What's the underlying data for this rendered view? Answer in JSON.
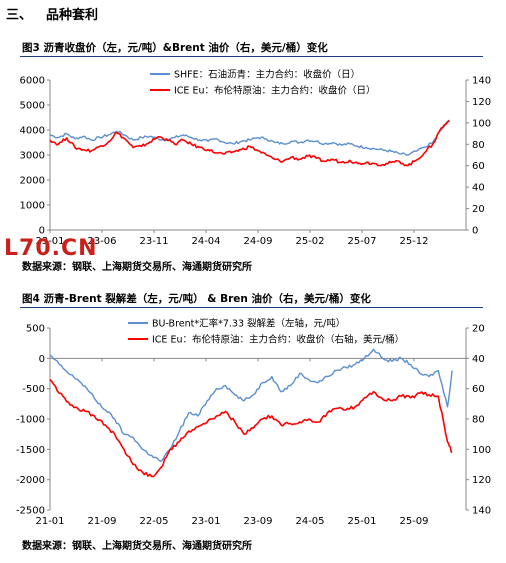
{
  "section": {
    "number": "三、",
    "title": "品种套利"
  },
  "watermark": "L70.CN",
  "figure1": {
    "title": "图3  沥青收盘价（左，元/吨）&Brent 油价（右，美元/桶）变化",
    "source": "数据来源：钢联、上海期货交易所、海通期货研究所"
  },
  "figure2": {
    "title": "图4  沥青-Brent 裂解差（左，元/吨）  & Bren 油价（右，美元/桶）变化",
    "source": "数据来源：钢联、上海期货交易所、海通期货研究所"
  },
  "colors": {
    "series_blue": "#5b8fcf",
    "series_red": "#ff0000",
    "rule": "#1f3d7a"
  },
  "chart_data": [
    {
      "type": "line",
      "x_tick_labels": [
        "23-01",
        "23-06",
        "23-11",
        "24-04",
        "24-09",
        "25-02",
        "25-07",
        "25-12"
      ],
      "left_ylim": [
        0,
        6000
      ],
      "left_ticks": [
        0,
        1000,
        2000,
        3000,
        4000,
        5000,
        6000
      ],
      "right_ylim": [
        0,
        140
      ],
      "right_ticks": [
        0,
        20,
        40,
        60,
        80,
        100,
        120,
        140
      ],
      "grid": false,
      "legend_position": "top-right",
      "series": [
        {
          "name": "SHFE：石油沥青：主力合约：收盘价（日）",
          "axis": "left",
          "color": "#5b8fcf",
          "points": [
            [
              0,
              3800
            ],
            [
              2,
              3700
            ],
            [
              4,
              3850
            ],
            [
              6,
              3650
            ],
            [
              8,
              3750
            ],
            [
              10,
              3600
            ],
            [
              12,
              3700
            ],
            [
              14,
              3800
            ],
            [
              16,
              3950
            ],
            [
              18,
              3800
            ],
            [
              20,
              3600
            ],
            [
              22,
              3700
            ],
            [
              24,
              3750
            ],
            [
              26,
              3650
            ],
            [
              28,
              3600
            ],
            [
              30,
              3700
            ],
            [
              32,
              3800
            ],
            [
              34,
              3700
            ],
            [
              36,
              3600
            ],
            [
              38,
              3550
            ],
            [
              40,
              3650
            ],
            [
              42,
              3500
            ],
            [
              44,
              3450
            ],
            [
              46,
              3550
            ],
            [
              48,
              3600
            ],
            [
              50,
              3700
            ],
            [
              52,
              3650
            ],
            [
              54,
              3500
            ],
            [
              56,
              3450
            ],
            [
              58,
              3550
            ],
            [
              60,
              3500
            ],
            [
              62,
              3600
            ],
            [
              64,
              3550
            ],
            [
              66,
              3450
            ],
            [
              68,
              3500
            ],
            [
              70,
              3400
            ],
            [
              72,
              3450
            ],
            [
              74,
              3350
            ],
            [
              76,
              3300
            ],
            [
              78,
              3250
            ],
            [
              80,
              3200
            ],
            [
              82,
              3150
            ],
            [
              84,
              3050
            ],
            [
              86,
              3000
            ],
            [
              88,
              3150
            ],
            [
              90,
              3300
            ],
            [
              92,
              3500
            ],
            [
              94,
              4000
            ],
            [
              96,
              4400
            ]
          ]
        },
        {
          "name": "ICE Eu：布伦特原油：主力合约：收盘价（日）",
          "axis": "right",
          "color": "#ff0000",
          "points": [
            [
              0,
              84
            ],
            [
              2,
              80
            ],
            [
              4,
              86
            ],
            [
              6,
              77
            ],
            [
              8,
              75
            ],
            [
              10,
              74
            ],
            [
              12,
              78
            ],
            [
              14,
              82
            ],
            [
              16,
              91
            ],
            [
              18,
              85
            ],
            [
              20,
              77
            ],
            [
              22,
              78
            ],
            [
              24,
              82
            ],
            [
              26,
              87
            ],
            [
              28,
              85
            ],
            [
              30,
              80
            ],
            [
              32,
              84
            ],
            [
              34,
              80
            ],
            [
              36,
              77
            ],
            [
              38,
              75
            ],
            [
              40,
              72
            ],
            [
              42,
              71
            ],
            [
              44,
              73
            ],
            [
              46,
              75
            ],
            [
              48,
              78
            ],
            [
              50,
              74
            ],
            [
              52,
              70
            ],
            [
              54,
              66
            ],
            [
              56,
              64
            ],
            [
              58,
              68
            ],
            [
              60,
              66
            ],
            [
              62,
              69
            ],
            [
              64,
              67
            ],
            [
              66,
              64
            ],
            [
              68,
              66
            ],
            [
              70,
              63
            ],
            [
              72,
              65
            ],
            [
              74,
              62
            ],
            [
              76,
              63
            ],
            [
              78,
              62
            ],
            [
              80,
              61
            ],
            [
              82,
              63
            ],
            [
              84,
              64
            ],
            [
              86,
              60
            ],
            [
              88,
              65
            ],
            [
              90,
              72
            ],
            [
              92,
              80
            ],
            [
              94,
              95
            ],
            [
              96,
              102
            ]
          ]
        }
      ]
    },
    {
      "type": "line",
      "x_tick_labels": [
        "21-01",
        "21-09",
        "22-05",
        "23-01",
        "23-09",
        "24-05",
        "25-01",
        "25-09"
      ],
      "left_ylim": [
        -2500,
        500
      ],
      "left_ticks": [
        -2500,
        -2000,
        -1500,
        -1000,
        -500,
        0,
        500
      ],
      "right_ylim": [
        140,
        20
      ],
      "right_ticks": [
        20,
        40,
        60,
        80,
        100,
        120,
        140
      ],
      "right_axis_inverted": true,
      "grid": false,
      "legend_position": "top-center",
      "series": [
        {
          "name": "BU-Brent*汇率*7.33 裂解差（左轴，元/吨）",
          "axis": "left",
          "color": "#5b8fcf",
          "points": [
            [
              0,
              50
            ],
            [
              2,
              -100
            ],
            [
              4,
              -250
            ],
            [
              6,
              -350
            ],
            [
              8,
              -500
            ],
            [
              10,
              -700
            ],
            [
              12,
              -850
            ],
            [
              14,
              -1000
            ],
            [
              16,
              -1250
            ],
            [
              18,
              -1300
            ],
            [
              20,
              -1500
            ],
            [
              22,
              -1600
            ],
            [
              24,
              -1700
            ],
            [
              26,
              -1500
            ],
            [
              28,
              -1200
            ],
            [
              30,
              -900
            ],
            [
              32,
              -950
            ],
            [
              34,
              -700
            ],
            [
              36,
              -500
            ],
            [
              38,
              -450
            ],
            [
              40,
              -600
            ],
            [
              42,
              -700
            ],
            [
              44,
              -600
            ],
            [
              46,
              -400
            ],
            [
              48,
              -300
            ],
            [
              50,
              -550
            ],
            [
              52,
              -450
            ],
            [
              54,
              -250
            ],
            [
              56,
              -350
            ],
            [
              58,
              -400
            ],
            [
              60,
              -300
            ],
            [
              62,
              -200
            ],
            [
              64,
              -150
            ],
            [
              66,
              -100
            ],
            [
              68,
              0
            ],
            [
              70,
              150
            ],
            [
              72,
              0
            ],
            [
              74,
              -50
            ],
            [
              76,
              0
            ],
            [
              78,
              -100
            ],
            [
              80,
              -250
            ],
            [
              82,
              -300
            ],
            [
              84,
              -200
            ],
            [
              86,
              -800
            ],
            [
              87,
              -200
            ]
          ]
        },
        {
          "name": "ICE Eu：布伦特原油：主力合约：收盘价（右轴，美元/桶）",
          "axis": "right",
          "color": "#ff0000",
          "points": [
            [
              0,
              54
            ],
            [
              2,
              63
            ],
            [
              4,
              69
            ],
            [
              6,
              73
            ],
            [
              8,
              75
            ],
            [
              10,
              80
            ],
            [
              12,
              84
            ],
            [
              14,
              90
            ],
            [
              16,
              100
            ],
            [
              18,
              110
            ],
            [
              20,
              115
            ],
            [
              22,
              118
            ],
            [
              24,
              112
            ],
            [
              26,
              100
            ],
            [
              28,
              95
            ],
            [
              30,
              88
            ],
            [
              32,
              85
            ],
            [
              34,
              82
            ],
            [
              36,
              78
            ],
            [
              38,
              75
            ],
            [
              40,
              82
            ],
            [
              42,
              90
            ],
            [
              44,
              86
            ],
            [
              46,
              80
            ],
            [
              48,
              78
            ],
            [
              50,
              84
            ],
            [
              52,
              83
            ],
            [
              54,
              82
            ],
            [
              56,
              80
            ],
            [
              58,
              82
            ],
            [
              60,
              76
            ],
            [
              62,
              73
            ],
            [
              64,
              74
            ],
            [
              66,
              72
            ],
            [
              68,
              66
            ],
            [
              70,
              62
            ],
            [
              72,
              67
            ],
            [
              74,
              68
            ],
            [
              76,
              65
            ],
            [
              78,
              66
            ],
            [
              80,
              63
            ],
            [
              82,
              64
            ],
            [
              84,
              65
            ],
            [
              86,
              95
            ],
            [
              87,
              102
            ]
          ]
        }
      ]
    }
  ]
}
